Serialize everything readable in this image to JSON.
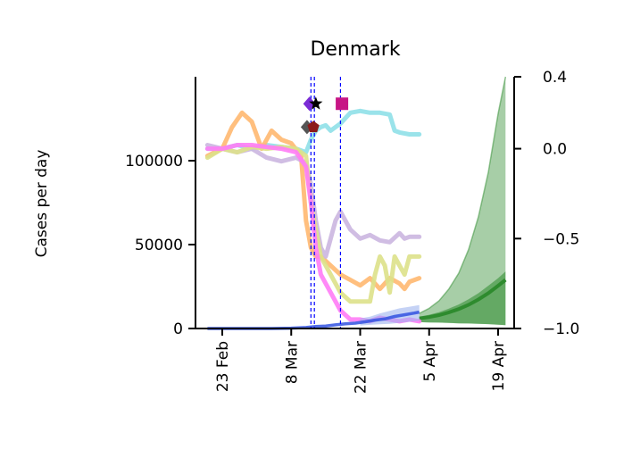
{
  "chart_data": {
    "type": "line",
    "title": "Denmark",
    "ylabel": "Cases per day",
    "ylim": [
      0,
      150000
    ],
    "y2lim": [
      -1.0,
      0.4
    ],
    "x_ticks": [
      "23 Feb",
      "8 Mar",
      "22 Mar",
      "5 Apr",
      "19 Apr"
    ],
    "y_ticks": [
      "0",
      "50000",
      "100000"
    ],
    "y_tick_values": [
      0,
      50000,
      100000
    ],
    "y2_ticks": [
      "0.4",
      "0.0",
      "−0.5",
      "−1.0"
    ],
    "y2_tick_values": [
      0.4,
      0.0,
      -0.5,
      -1.0
    ],
    "x_tick_days": [
      0,
      14,
      28,
      42,
      56
    ],
    "event_lines_days": [
      18,
      18.7,
      24
    ],
    "mobility_series": [
      {
        "color": "#8fe0e8",
        "x": [
          -3,
          0,
          3,
          6,
          9,
          12,
          15,
          17,
          18,
          19,
          20,
          21,
          22,
          24,
          26,
          28,
          30,
          32,
          34,
          35,
          36,
          38,
          40
        ],
        "y": [
          0.0,
          0.0,
          0.02,
          0.0,
          0.02,
          0.01,
          0.0,
          -0.02,
          0.05,
          0.1,
          0.12,
          0.13,
          0.1,
          0.14,
          0.2,
          0.21,
          0.2,
          0.2,
          0.19,
          0.1,
          0.09,
          0.08,
          0.08
        ]
      },
      {
        "color": "#ffb870",
        "x": [
          -3,
          0,
          2,
          4,
          6,
          8,
          10,
          12,
          14,
          16,
          17,
          18,
          19,
          20,
          22,
          24,
          26,
          28,
          30,
          32,
          34,
          36,
          37,
          38,
          40
        ],
        "y": [
          -0.04,
          0.0,
          0.12,
          0.2,
          0.15,
          0.0,
          0.1,
          0.05,
          0.03,
          -0.04,
          -0.4,
          -0.55,
          -0.6,
          -0.6,
          -0.65,
          -0.7,
          -0.73,
          -0.76,
          -0.72,
          -0.78,
          -0.72,
          -0.75,
          -0.78,
          -0.74,
          -0.72
        ]
      },
      {
        "color": "#cbb6e0",
        "x": [
          -3,
          0,
          3,
          6,
          9,
          12,
          15,
          17,
          18,
          19,
          20,
          21,
          22,
          23,
          24,
          26,
          28,
          30,
          32,
          34,
          36,
          37,
          38,
          40
        ],
        "y": [
          0.02,
          0.0,
          -0.02,
          0.0,
          -0.05,
          -0.07,
          -0.05,
          -0.08,
          -0.2,
          -0.4,
          -0.55,
          -0.6,
          -0.5,
          -0.4,
          -0.35,
          -0.45,
          -0.5,
          -0.48,
          -0.51,
          -0.52,
          -0.47,
          -0.5,
          -0.49,
          -0.49
        ]
      },
      {
        "color": "#dde18a",
        "x": [
          -3,
          0,
          3,
          6,
          9,
          12,
          15,
          17,
          18,
          19,
          20,
          22,
          24,
          26,
          28,
          30,
          31,
          32,
          33,
          34,
          35,
          36,
          37,
          38,
          40
        ],
        "y": [
          -0.05,
          0.0,
          -0.02,
          0.01,
          0.0,
          0.01,
          0.0,
          -0.04,
          -0.3,
          -0.45,
          -0.6,
          -0.7,
          -0.8,
          -0.85,
          -0.85,
          -0.85,
          -0.7,
          -0.6,
          -0.65,
          -0.8,
          -0.6,
          -0.65,
          -0.7,
          -0.6,
          -0.6
        ]
      },
      {
        "color": "#ff7cf6",
        "x": [
          -3,
          0,
          3,
          6,
          9,
          12,
          15,
          17,
          18,
          19,
          20,
          22,
          24,
          26,
          28,
          30,
          32,
          34,
          36,
          38,
          40
        ],
        "y": [
          0.0,
          0.0,
          0.02,
          0.02,
          0.01,
          0.0,
          -0.02,
          -0.1,
          -0.3,
          -0.55,
          -0.7,
          -0.8,
          -0.9,
          -0.95,
          -0.95,
          -0.96,
          -0.94,
          -0.95,
          -0.96,
          -0.95,
          -0.96
        ]
      }
    ],
    "markers": [
      {
        "day": 17.2,
        "y2": 0.12,
        "shape": "diamond",
        "color": "#555555"
      },
      {
        "day": 18.5,
        "y2": 0.12,
        "shape": "pentagon",
        "color": "#8b1a1a"
      },
      {
        "day": 17.7,
        "y2": 0.25,
        "shape": "diamond",
        "color": "#7b2cd6"
      },
      {
        "day": 19.0,
        "y2": 0.25,
        "shape": "star",
        "color": "#000000"
      },
      {
        "day": 24.3,
        "y2": 0.25,
        "shape": "square",
        "color": "#c71585"
      }
    ],
    "cases_observed": {
      "color": "#3152e0",
      "x": [
        -3,
        0,
        5,
        10,
        14,
        17,
        19,
        21,
        23,
        25,
        27,
        29,
        31,
        33,
        35,
        37,
        39,
        40
      ],
      "y": [
        0,
        0,
        0,
        0,
        200,
        600,
        1200,
        1500,
        2200,
        2800,
        3200,
        4000,
        5000,
        5700,
        7200,
        8200,
        9200,
        9800
      ]
    },
    "cases_band_observed": {
      "x": [
        28,
        30,
        32,
        34,
        36,
        38,
        40
      ],
      "lower": [
        1800,
        2200,
        2500,
        2800,
        3400,
        4000,
        4500
      ],
      "upper": [
        6000,
        7000,
        9000,
        10500,
        12000,
        13000,
        14000
      ]
    },
    "forecast": {
      "color": "#2e8b2e",
      "x": [
        40,
        42,
        44,
        46,
        48,
        50,
        52,
        54,
        56,
        57.5
      ],
      "median": [
        6000,
        6800,
        8000,
        9600,
        11600,
        14100,
        17300,
        21000,
        25500,
        29000
      ],
      "lower": [
        3800,
        3600,
        3500,
        3300,
        3100,
        3000,
        2800,
        2600,
        2300,
        2000
      ],
      "upper_outer": [
        9000,
        12000,
        16500,
        23500,
        33000,
        47000,
        66500,
        93000,
        128000,
        150000
      ],
      "upper_inner": [
        7000,
        8200,
        9700,
        11800,
        14300,
        17400,
        21000,
        25500,
        30000,
        34000
      ]
    }
  }
}
